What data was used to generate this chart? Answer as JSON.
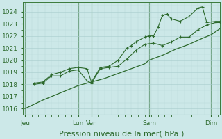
{
  "bg_color": "#cce8e8",
  "grid_color_minor": "#b8d8d8",
  "grid_color_major": "#a8cccc",
  "line_color": "#2d6a2d",
  "xlabel": "Pression niveau de la mer( hPa )",
  "xlabel_fontsize": 8,
  "tick_fontsize": 6.5,
  "ylim": [
    1015.5,
    1024.8
  ],
  "yticks": [
    1016,
    1017,
    1018,
    1019,
    1020,
    1021,
    1022,
    1023,
    1024
  ],
  "day_positions": [
    0,
    3.0,
    3.75,
    7.0,
    10.5
  ],
  "day_labels": [
    "Jeu",
    "Lun",
    "Ven",
    "Sam",
    "Dim"
  ],
  "xlim": [
    -0.1,
    11.0
  ],
  "line_smooth_x": [
    0,
    1,
    2,
    3,
    3.75,
    4.5,
    5.25,
    6,
    6.75,
    7,
    7.75,
    8.5,
    9.25,
    10,
    10.5,
    11
  ],
  "line_smooth_y": [
    1016.0,
    1016.7,
    1017.3,
    1017.9,
    1018.2,
    1018.5,
    1018.9,
    1019.3,
    1019.7,
    1020.0,
    1020.4,
    1020.9,
    1021.3,
    1021.8,
    1022.1,
    1022.6
  ],
  "line_mid_x": [
    0.5,
    1.0,
    1.5,
    2.0,
    2.5,
    3.0,
    3.5,
    3.75,
    4.25,
    4.75,
    5.25,
    5.75,
    6.25,
    6.75,
    7.25,
    7.75,
    8.25,
    8.75,
    9.25,
    9.75,
    10.25,
    10.75,
    11.0
  ],
  "line_mid_y": [
    1018.0,
    1018.1,
    1018.7,
    1018.7,
    1019.1,
    1019.2,
    1018.3,
    1018.1,
    1019.3,
    1019.4,
    1019.5,
    1020.1,
    1020.8,
    1021.3,
    1021.4,
    1021.2,
    1021.5,
    1021.9,
    1021.9,
    1022.5,
    1022.9,
    1023.1,
    1023.1
  ],
  "line_high_x": [
    0.5,
    1.0,
    1.5,
    2.0,
    2.5,
    3.0,
    3.5,
    3.75,
    4.25,
    4.75,
    5.25,
    5.75,
    6.0,
    6.25,
    6.75,
    7.0,
    7.25,
    7.5,
    7.75,
    8.0,
    8.25,
    8.75,
    9.25,
    9.75,
    10.0,
    10.25,
    10.75,
    11.0
  ],
  "line_high_y": [
    1018.1,
    1018.2,
    1018.8,
    1019.0,
    1019.3,
    1019.4,
    1019.3,
    1018.2,
    1019.4,
    1019.5,
    1020.0,
    1021.0,
    1021.2,
    1021.5,
    1021.9,
    1022.0,
    1022.0,
    1022.7,
    1023.7,
    1023.8,
    1023.4,
    1023.2,
    1023.6,
    1024.3,
    1024.4,
    1023.1,
    1023.2,
    1023.2
  ],
  "vline_color": "#3a7a3a",
  "spine_color": "#3a7a3a"
}
